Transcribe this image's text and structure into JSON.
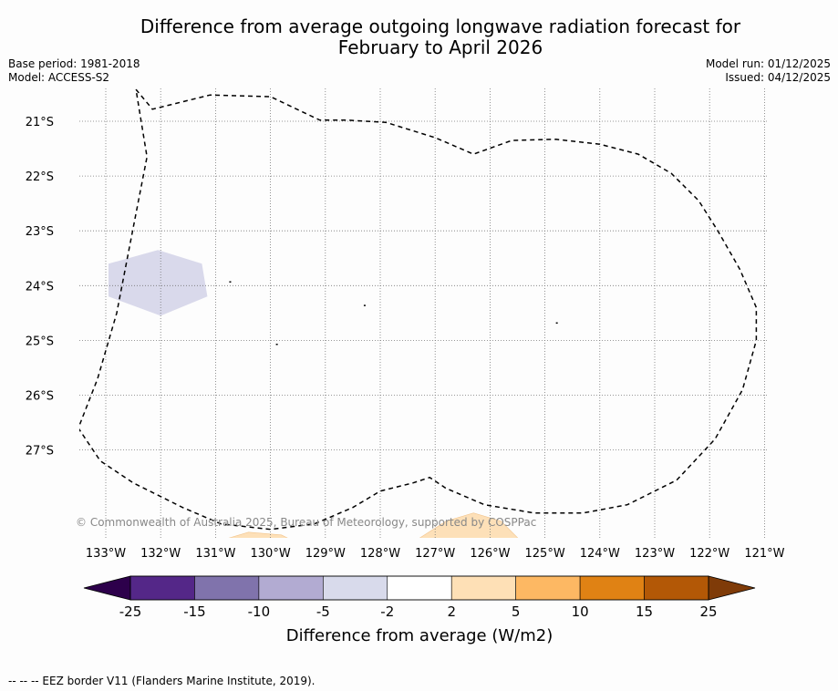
{
  "header": {
    "title_line1": "Difference from average outgoing longwave radiation forecast for",
    "title_line2": "February to April 2026",
    "base_period": "Base period: 1981-2018",
    "model": "Model: ACCESS-S2",
    "model_run": "Model run: 01/12/2025",
    "issued": "Issued: 04/12/2025"
  },
  "footer": {
    "eez_legend": "--  --  -- EEZ border V11 (Flanders Marine Institute, 2019)."
  },
  "chart_data": {
    "type": "heatmap",
    "title": "Difference from average outgoing longwave radiation forecast for February to April 2026",
    "map": {
      "lon_range": [
        -133.5,
        -121
      ],
      "lat_range": [
        -28.6,
        -20.4
      ],
      "lon_ticks": [
        -133,
        -132,
        -131,
        -130,
        -129,
        -128,
        -127,
        -126,
        -125,
        -124,
        -123,
        -122,
        -121
      ],
      "lon_tick_labels": [
        "133°W",
        "132°W",
        "131°W",
        "130°W",
        "129°W",
        "128°W",
        "127°W",
        "126°W",
        "125°W",
        "124°W",
        "123°W",
        "122°W",
        "121°W"
      ],
      "lat_ticks": [
        -21,
        -22,
        -23,
        -24,
        -25,
        -26,
        -27
      ],
      "lat_tick_labels": [
        "21°S",
        "22°S",
        "23°S",
        "24°S",
        "25°S",
        "26°S",
        "27°S"
      ],
      "grid": true,
      "copyright": "© Commonwealth of Australia 2025, Bureau of Meteorology, supported by COSPPac"
    },
    "anomaly_regions": [
      {
        "name": "negative-anomaly-patch",
        "category": "-5 to -2",
        "color": "#d9d9eb",
        "polygon_lonlat": [
          [
            -132.95,
            -23.6
          ],
          [
            -132.05,
            -23.35
          ],
          [
            -131.25,
            -23.6
          ],
          [
            -131.15,
            -24.2
          ],
          [
            -132.0,
            -24.55
          ],
          [
            -132.95,
            -24.2
          ]
        ]
      },
      {
        "name": "positive-anomaly-patch-west",
        "category": "2 to 5",
        "color": "#fde0b8",
        "polygon_lonlat": [
          [
            -130.9,
            -28.65
          ],
          [
            -130.4,
            -28.5
          ],
          [
            -129.8,
            -28.55
          ],
          [
            -129.6,
            -28.65
          ]
        ]
      },
      {
        "name": "positive-anomaly-patch-east",
        "category": "2 to 5",
        "color": "#fde0b8",
        "polygon_lonlat": [
          [
            -127.35,
            -28.65
          ],
          [
            -126.8,
            -28.3
          ],
          [
            -126.3,
            -28.15
          ],
          [
            -125.8,
            -28.3
          ],
          [
            -125.45,
            -28.65
          ]
        ]
      }
    ],
    "eez_border_lonlat": [
      [
        -132.45,
        -20.42
      ],
      [
        -132.15,
        -20.78
      ],
      [
        -131.1,
        -20.52
      ],
      [
        -130.0,
        -20.55
      ],
      [
        -129.1,
        -20.98
      ],
      [
        -128.6,
        -20.98
      ],
      [
        -127.9,
        -21.02
      ],
      [
        -127.0,
        -21.3
      ],
      [
        -126.3,
        -21.6
      ],
      [
        -125.6,
        -21.35
      ],
      [
        -124.8,
        -21.33
      ],
      [
        -124.0,
        -21.42
      ],
      [
        -123.3,
        -21.6
      ],
      [
        -122.7,
        -21.95
      ],
      [
        -122.2,
        -22.45
      ],
      [
        -121.85,
        -23.0
      ],
      [
        -121.45,
        -23.7
      ],
      [
        -121.15,
        -24.4
      ],
      [
        -121.15,
        -25.0
      ],
      [
        -121.4,
        -25.9
      ],
      [
        -121.9,
        -26.8
      ],
      [
        -122.6,
        -27.55
      ],
      [
        -123.5,
        -28.0
      ],
      [
        -124.3,
        -28.15
      ],
      [
        -125.2,
        -28.15
      ],
      [
        -126.1,
        -28.0
      ],
      [
        -126.8,
        -27.7
      ],
      [
        -127.1,
        -27.5
      ],
      [
        -127.4,
        -27.6
      ],
      [
        -128.0,
        -27.75
      ],
      [
        -128.5,
        -28.05
      ],
      [
        -129.2,
        -28.35
      ],
      [
        -130.0,
        -28.45
      ],
      [
        -130.9,
        -28.35
      ],
      [
        -131.6,
        -28.05
      ],
      [
        -132.5,
        -27.6
      ],
      [
        -133.1,
        -27.2
      ],
      [
        -133.5,
        -26.6
      ],
      [
        -133.15,
        -25.7
      ],
      [
        -132.8,
        -24.5
      ],
      [
        -132.55,
        -23.2
      ],
      [
        -132.25,
        -21.65
      ],
      [
        -132.45,
        -20.42
      ]
    ],
    "colorbar": {
      "label": "Difference from average (W/m2)",
      "tick_labels": [
        "-25",
        "-15",
        "-10",
        "-5",
        "-2",
        "2",
        "5",
        "10",
        "15",
        "25"
      ],
      "bin_colors": [
        "#542788",
        "#8073ac",
        "#b2abd2",
        "#d8daeb",
        "#ffffff",
        "#fee0b6",
        "#fdb863",
        "#e08214",
        "#b35806"
      ],
      "under_color": "#2d004b",
      "over_color": "#7f3b08"
    }
  }
}
